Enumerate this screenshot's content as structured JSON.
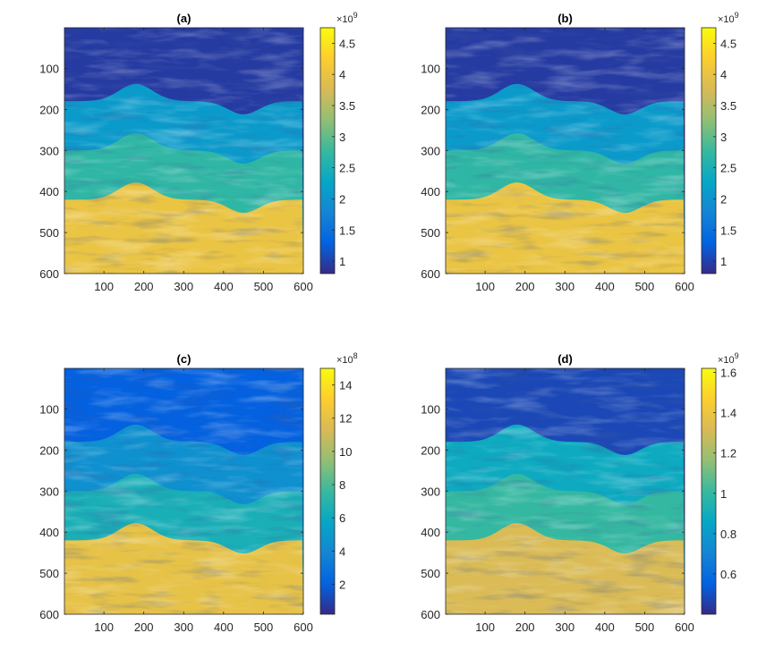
{
  "figure": {
    "panels": [
      {
        "title": "(a)",
        "cbar_ticks": [
          "1",
          "1.5",
          "2",
          "2.5",
          "3",
          "3.5",
          "4",
          "4.5"
        ],
        "cbar_base": "×10",
        "cbar_power": "9"
      },
      {
        "title": "(b)",
        "cbar_ticks": [
          "1",
          "1.5",
          "2",
          "2.5",
          "3",
          "3.5",
          "4",
          "4.5"
        ],
        "cbar_base": "×10",
        "cbar_power": "9"
      },
      {
        "title": "(c)",
        "cbar_ticks": [
          "2",
          "4",
          "6",
          "8",
          "10",
          "12",
          "14"
        ],
        "cbar_base": "×10",
        "cbar_power": "8"
      },
      {
        "title": "(d)",
        "cbar_ticks": [
          "0.6",
          "0.8",
          "1",
          "1.2",
          "1.4",
          "1.6"
        ],
        "cbar_base": "×10",
        "cbar_power": "9"
      }
    ]
  },
  "chart_data": [
    {
      "type": "heatmap",
      "title": "(a)",
      "colormap": "parula",
      "x_ticks": [
        100,
        200,
        300,
        400,
        500,
        600
      ],
      "y_ticks": [
        100,
        200,
        300,
        400,
        500,
        600
      ],
      "xlim": [
        1,
        600
      ],
      "ylim": [
        1,
        600
      ],
      "y_reversed": true,
      "colorbar": {
        "ticks": [
          1,
          1.5,
          2,
          2.5,
          3,
          3.5,
          4,
          4.5
        ],
        "range": [
          0.8,
          4.75
        ],
        "exponent": 9
      },
      "layer_boundaries": [
        "y=180 with bump peaking ~140 at x~180 and trough ~210 at x~450",
        "y=300 same shape",
        "y=420 same shape"
      ],
      "layer_values": [
        0.95,
        2.1,
        2.7,
        4.0
      ]
    },
    {
      "type": "heatmap",
      "title": "(b)",
      "colormap": "parula",
      "x_ticks": [
        100,
        200,
        300,
        400,
        500,
        600
      ],
      "y_ticks": [
        100,
        200,
        300,
        400,
        500,
        600
      ],
      "xlim": [
        1,
        600
      ],
      "ylim": [
        1,
        600
      ],
      "y_reversed": true,
      "colorbar": {
        "ticks": [
          1,
          1.5,
          2,
          2.5,
          3,
          3.5,
          4,
          4.5
        ],
        "range": [
          0.8,
          4.75
        ],
        "exponent": 9
      },
      "layer_values": [
        0.95,
        2.1,
        2.7,
        4.0
      ]
    },
    {
      "type": "heatmap",
      "title": "(c)",
      "colormap": "parula",
      "x_ticks": [
        100,
        200,
        300,
        400,
        500,
        600
      ],
      "y_ticks": [
        100,
        200,
        300,
        400,
        500,
        600
      ],
      "xlim": [
        1,
        600
      ],
      "ylim": [
        1,
        600
      ],
      "y_reversed": true,
      "colorbar": {
        "ticks": [
          2,
          4,
          6,
          8,
          10,
          12,
          14
        ],
        "range": [
          0.2,
          15
        ],
        "exponent": 8
      },
      "layer_values": [
        2,
        4.5,
        6.5,
        12
      ]
    },
    {
      "type": "heatmap",
      "title": "(d)",
      "colormap": "parula",
      "x_ticks": [
        100,
        200,
        300,
        400,
        500,
        600
      ],
      "y_ticks": [
        100,
        200,
        300,
        400,
        500,
        600
      ],
      "xlim": [
        1,
        600
      ],
      "ylim": [
        1,
        600
      ],
      "y_reversed": true,
      "colorbar": {
        "ticks": [
          0.6,
          0.8,
          1,
          1.2,
          1.4,
          1.6
        ],
        "range": [
          0.4,
          1.62
        ],
        "exponent": 9
      },
      "layer_values": [
        0.48,
        0.88,
        1.0,
        1.32
      ]
    }
  ]
}
